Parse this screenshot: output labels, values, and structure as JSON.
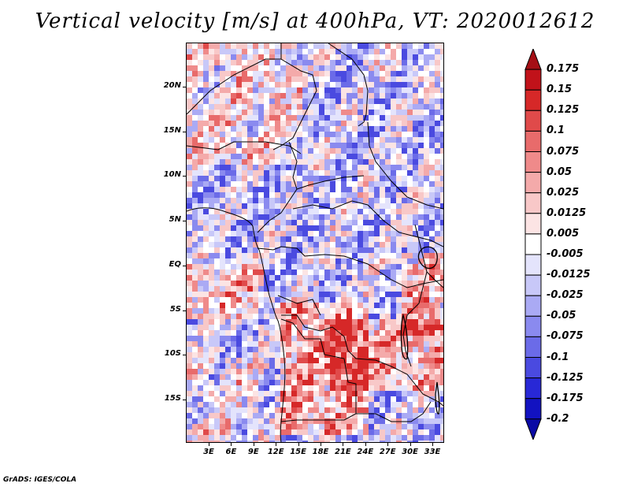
{
  "title": "Vertical velocity [m/s] at 400hPa, VT: 2020012612",
  "lat_labels": [
    "20N",
    "15N",
    "10N",
    "5N",
    "EQ",
    "5S",
    "10S",
    "15S"
  ],
  "lon_labels": [
    "3E",
    "6E",
    "9E",
    "12E",
    "15E",
    "18E",
    "21E",
    "24E",
    "27E",
    "30E",
    "33E"
  ],
  "colorbar": {
    "levels": [
      "0.175",
      "0.15",
      "0.125",
      "0.1",
      "0.075",
      "0.05",
      "0.025",
      "0.0125",
      "0.005",
      "-0.005",
      "-0.0125",
      "-0.025",
      "-0.05",
      "-0.075",
      "-0.1",
      "-0.125",
      "-0.175",
      "-0.2"
    ],
    "colors": [
      "#a50f15",
      "#c1121a",
      "#d62828",
      "#e04a4a",
      "#e86b6b",
      "#ef8a8a",
      "#f4aaaa",
      "#f8c8c8",
      "#fce4e4",
      "#ffffff",
      "#e4e4fc",
      "#c8c8f8",
      "#aaaaf4",
      "#8a8aef",
      "#6b6be8",
      "#4a4ae0",
      "#2828d6",
      "#1212c1",
      "#0a0aa5"
    ]
  },
  "credit": "GrADS: IGES/COLA"
}
